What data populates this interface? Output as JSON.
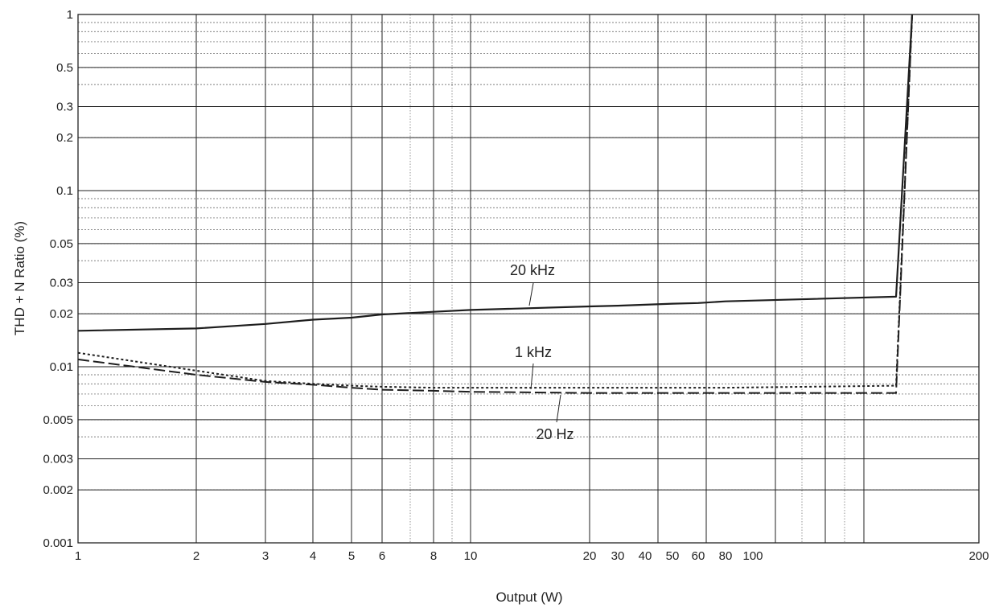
{
  "chart_data": {
    "type": "line",
    "title": "",
    "xlabel": "Output (W)",
    "ylabel": "THD + N Ratio (%)",
    "y_scale": "log",
    "ylim": [
      0.001,
      1
    ],
    "grid": true,
    "xtick_labels": [
      "1",
      "2",
      "3",
      "4",
      "5",
      "6",
      "8",
      "10",
      "20",
      "30",
      "40",
      "50",
      "60",
      "80",
      "100",
      "200"
    ],
    "ytick_labels": [
      "0.001",
      "0.002",
      "0.003",
      "0.005",
      "0.01",
      "0.02",
      "0.03",
      "0.05",
      "0.1",
      "0.2",
      "0.3",
      "0.5",
      "1"
    ],
    "series": [
      {
        "name": "20 kHz",
        "style": "solid",
        "x": [
          "1",
          "2",
          "3",
          "4",
          "5",
          "6",
          "8",
          "10",
          "20",
          "30",
          "40",
          "50",
          "60",
          "80",
          "100",
          "200"
        ],
        "values": [
          0.016,
          0.0165,
          0.0175,
          0.0185,
          0.019,
          0.0198,
          0.0205,
          0.021,
          0.022,
          0.0222,
          0.0225,
          0.0228,
          0.023,
          0.0235,
          0.025,
          1.0
        ]
      },
      {
        "name": "1 kHz",
        "style": "dotted",
        "x": [
          "1",
          "2",
          "3",
          "4",
          "5",
          "6",
          "8",
          "10",
          "20",
          "30",
          "40",
          "50",
          "60",
          "80",
          "100",
          "200"
        ],
        "values": [
          0.012,
          0.0095,
          0.0083,
          0.008,
          0.0078,
          0.0077,
          0.0076,
          0.0076,
          0.0076,
          0.0076,
          0.0076,
          0.0076,
          0.0076,
          0.0076,
          0.0078,
          1.0
        ]
      },
      {
        "name": "20 Hz",
        "style": "dashed",
        "x": [
          "1",
          "2",
          "3",
          "4",
          "5",
          "6",
          "8",
          "10",
          "20",
          "30",
          "40",
          "50",
          "60",
          "80",
          "100",
          "200"
        ],
        "values": [
          0.011,
          0.009,
          0.0082,
          0.0079,
          0.0076,
          0.0074,
          0.0073,
          0.0072,
          0.0071,
          0.0071,
          0.0071,
          0.0071,
          0.0071,
          0.0071,
          0.0071,
          1.0
        ]
      }
    ]
  }
}
